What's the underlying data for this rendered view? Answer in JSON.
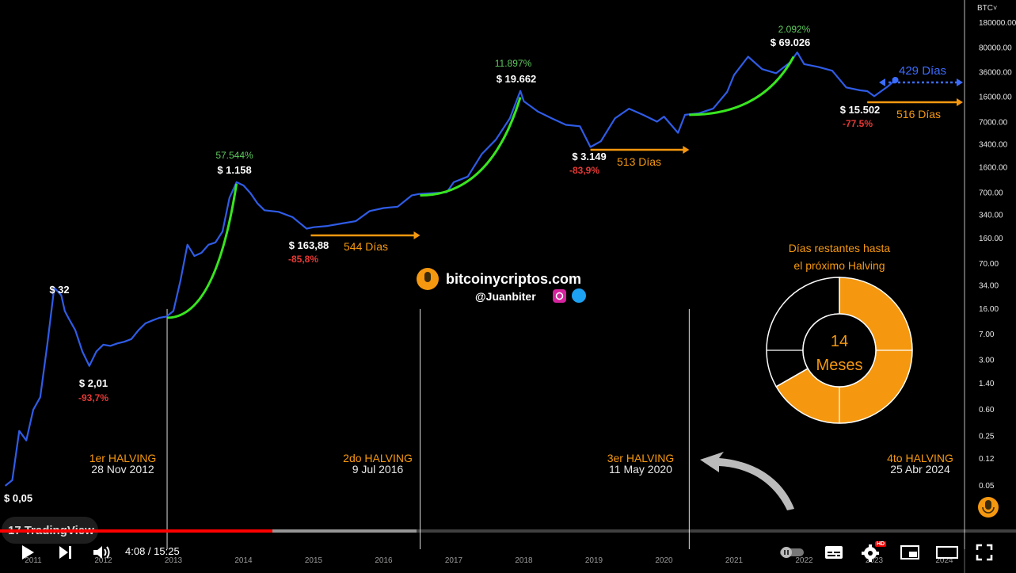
{
  "video": {
    "current_time": "4:08",
    "separator": " / ",
    "duration": "15:25",
    "progress": 0.268,
    "buffered": 0.41,
    "hd_badge": "HD"
  },
  "tradingview": {
    "label": "TradingView",
    "mark": "17"
  },
  "watermark": {
    "site": "bitcoinycriptos.com",
    "handle": "@Juanbiter"
  },
  "halving_panel": {
    "title_line1": "Días restantes hasta",
    "title_line2": "el próximo Halving",
    "center_value": "14",
    "center_unit": "Meses",
    "elapsed_fraction": 0.667,
    "colors": {
      "elapsed": "#f5980f",
      "remaining": "#000000",
      "border": "#ffffff"
    }
  },
  "chart_data": {
    "type": "line",
    "symbol": "BTC",
    "y_scale": "log",
    "y_ticks": [
      "180000.00",
      "80000.00",
      "36000.00",
      "16000.00",
      "7000.00",
      "3400.00",
      "1600.00",
      "700.00",
      "340.00",
      "160.00",
      "70.00",
      "34.00",
      "16.00",
      "7.00",
      "3.00",
      "1.40",
      "0.60",
      "0.25",
      "0.12",
      "0.05"
    ],
    "x_ticks": [
      "2011",
      "2012",
      "2013",
      "2014",
      "2015",
      "2016",
      "2017",
      "2018",
      "2019",
      "2020",
      "2021",
      "2022",
      "2023",
      "2024"
    ],
    "series": [
      {
        "color": "#2f5ce6",
        "x": [
          2010.6,
          2010.7,
          2010.8,
          2010.9,
          2011.0,
          2011.1,
          2011.2,
          2011.3,
          2011.4,
          2011.45,
          2011.5,
          2011.6,
          2011.7,
          2011.8,
          2011.9,
          2012.0,
          2012.1,
          2012.2,
          2012.3,
          2012.4,
          2012.5,
          2012.6,
          2012.7,
          2012.8,
          2012.9,
          2013.0,
          2013.1,
          2013.2,
          2013.3,
          2013.4,
          2013.5,
          2013.6,
          2013.7,
          2013.8,
          2013.9,
          2014.0,
          2014.1,
          2014.2,
          2014.3,
          2014.5,
          2014.7,
          2014.9,
          2015.0,
          2015.2,
          2015.4,
          2015.6,
          2015.8,
          2016.0,
          2016.2,
          2016.4,
          2016.5,
          2016.7,
          2016.9,
          2017.0,
          2017.2,
          2017.4,
          2017.6,
          2017.8,
          2017.95,
          2018.0,
          2018.2,
          2018.4,
          2018.6,
          2018.8,
          2018.95,
          2019.1,
          2019.3,
          2019.5,
          2019.7,
          2019.9,
          2020.0,
          2020.2,
          2020.3,
          2020.5,
          2020.7,
          2020.9,
          2021.0,
          2021.2,
          2021.4,
          2021.6,
          2021.8,
          2021.9,
          2022.0,
          2022.2,
          2022.4,
          2022.6,
          2022.8,
          2022.9,
          2023.0,
          2023.2,
          2023.3
        ],
        "values": [
          0.05,
          0.06,
          0.3,
          0.22,
          0.6,
          0.9,
          5,
          32,
          25,
          15,
          12,
          8,
          4,
          2.5,
          4,
          5,
          4.8,
          5.2,
          5.5,
          6,
          8,
          10,
          11,
          12,
          12.5,
          15,
          40,
          130,
          90,
          100,
          130,
          140,
          200,
          600,
          1000,
          900,
          700,
          500,
          400,
          380,
          320,
          220,
          230,
          240,
          260,
          280,
          390,
          430,
          450,
          650,
          680,
          700,
          720,
          1000,
          1200,
          2500,
          4000,
          8000,
          19662,
          14000,
          10000,
          8000,
          6500,
          6200,
          3149,
          3800,
          8000,
          11000,
          9000,
          7200,
          8500,
          5000,
          9000,
          9500,
          11000,
          19000,
          33000,
          60000,
          40000,
          35000,
          50000,
          69026,
          47000,
          43000,
          38000,
          22000,
          20000,
          19500,
          16500,
          23000,
          28000
        ]
      }
    ],
    "annotations": [
      {
        "price": "$ 0,05"
      },
      {
        "price": "$ 32"
      },
      {
        "price": "$ 2,01",
        "drawdown": "-93,7%"
      },
      {
        "price": "$ 1.158",
        "gain": "57.544%"
      },
      {
        "price": "$ 163,88",
        "drawdown": "-85,8%",
        "days": "544 Días"
      },
      {
        "price": "$ 19.662",
        "gain": "11.897%"
      },
      {
        "price": "$ 3.149",
        "drawdown": "-83,9%",
        "days": "513 Días"
      },
      {
        "price": "$ 69.026",
        "gain": "2.092%"
      },
      {
        "price": "$ 15.502",
        "drawdown": "-77.5%",
        "days": "516 Días"
      },
      {
        "days": "429 Días"
      }
    ],
    "halvings": [
      {
        "label": "1er HALVING",
        "date": "28 Nov 2012"
      },
      {
        "label": "2do HALVING",
        "date": "9 Jul 2016"
      },
      {
        "label": "3er HALVING",
        "date": "11 May 2020"
      },
      {
        "label": "4to HALVING",
        "date": "25 Abr 2024"
      }
    ],
    "colors": {
      "price_line": "#2f5ce6",
      "cycle_curve": "#39e61f",
      "halving_text": "#f5980f",
      "days_arrow": "#f5980f",
      "projection": "#3b6cff",
      "drawdown": "#e53935",
      "gain": "#5ec95e"
    }
  }
}
